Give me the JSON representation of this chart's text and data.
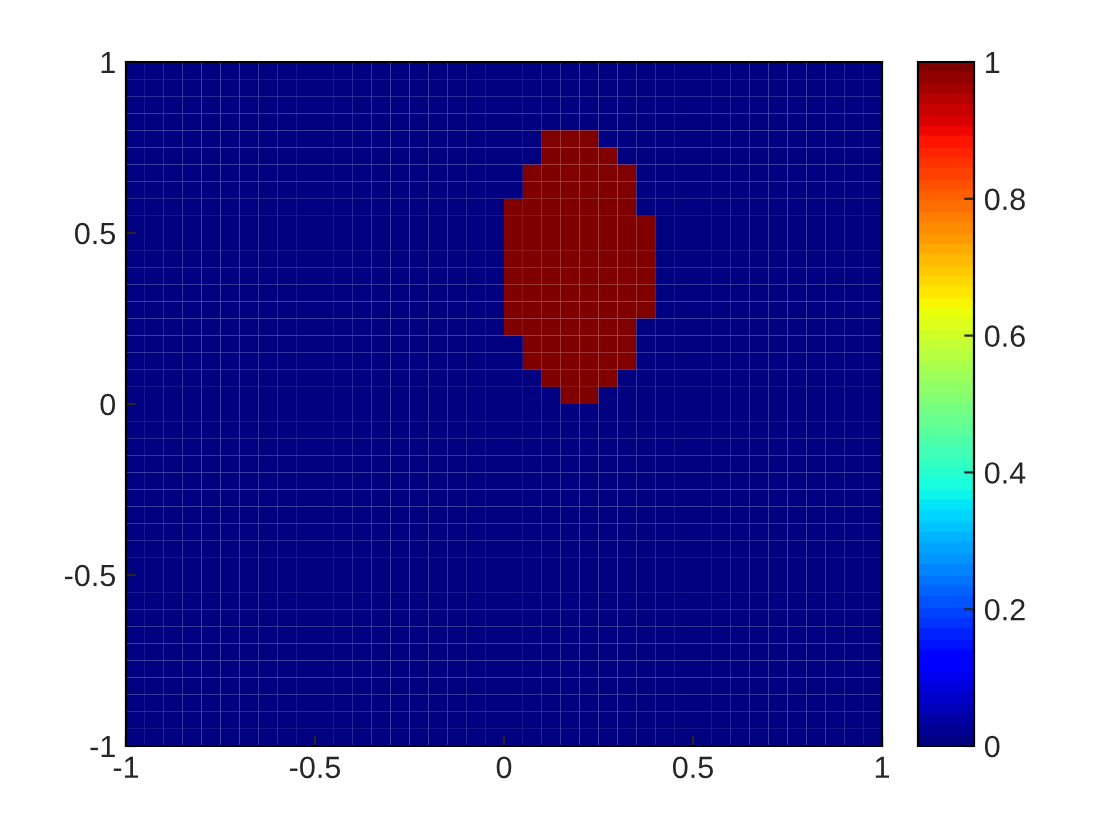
{
  "chart_data": {
    "type": "heatmap",
    "x": [
      -0.975,
      -0.925,
      -0.875,
      -0.825,
      -0.775,
      -0.725,
      -0.675,
      -0.625,
      -0.575,
      -0.525,
      -0.475,
      -0.425,
      -0.375,
      -0.325,
      -0.275,
      -0.225,
      -0.175,
      -0.125,
      -0.075,
      -0.025,
      0.025,
      0.075,
      0.125,
      0.175,
      0.225,
      0.275,
      0.325,
      0.375,
      0.425,
      0.475,
      0.525,
      0.575,
      0.625,
      0.675,
      0.725,
      0.775,
      0.825,
      0.875,
      0.925,
      0.975
    ],
    "y": [
      0.975,
      0.925,
      0.875,
      0.825,
      0.775,
      0.725,
      0.675,
      0.625,
      0.575,
      0.525,
      0.475,
      0.425,
      0.375,
      0.325,
      0.275,
      0.225,
      0.175,
      0.125,
      0.075,
      0.025,
      -0.025,
      -0.075,
      -0.125,
      -0.175,
      -0.225,
      -0.275,
      -0.325,
      -0.375,
      -0.425,
      -0.475,
      -0.525,
      -0.575,
      -0.625,
      -0.675,
      -0.725,
      -0.775,
      -0.825,
      -0.875,
      -0.925,
      -0.975
    ],
    "cells": [
      [
        0,
        0,
        0,
        0,
        0,
        0,
        0,
        0,
        0,
        0,
        0,
        0,
        0,
        0,
        0,
        0,
        0,
        0,
        0,
        0,
        0,
        0,
        0,
        0,
        0,
        0,
        0,
        0,
        0,
        0,
        0,
        0,
        0,
        0,
        0,
        0,
        0,
        0,
        0,
        0
      ],
      [
        0,
        0,
        0,
        0,
        0,
        0,
        0,
        0,
        0,
        0,
        0,
        0,
        0,
        0,
        0,
        0,
        0,
        0,
        0,
        0,
        0,
        0,
        0,
        0,
        0,
        0,
        0,
        0,
        0,
        0,
        0,
        0,
        0,
        0,
        0,
        0,
        0,
        0,
        0,
        0
      ],
      [
        0,
        0,
        0,
        0,
        0,
        0,
        0,
        0,
        0,
        0,
        0,
        0,
        0,
        0,
        0,
        0,
        0,
        0,
        0,
        0,
        0,
        0,
        0,
        0,
        0,
        0,
        0,
        0,
        0,
        0,
        0,
        0,
        0,
        0,
        0,
        0,
        0,
        0,
        0,
        0
      ],
      [
        0,
        0,
        0,
        0,
        0,
        0,
        0,
        0,
        0,
        0,
        0,
        0,
        0,
        0,
        0,
        0,
        0,
        0,
        0,
        0,
        0,
        0,
        0,
        0,
        0,
        0,
        0,
        0,
        0,
        0,
        0,
        0,
        0,
        0,
        0,
        0,
        0,
        0,
        0,
        0
      ],
      [
        0,
        0,
        0,
        0,
        0,
        0,
        0,
        0,
        0,
        0,
        0,
        0,
        0,
        0,
        0,
        0,
        0,
        0,
        0,
        0,
        0,
        0,
        1,
        1,
        1,
        0,
        0,
        0,
        0,
        0,
        0,
        0,
        0,
        0,
        0,
        0,
        0,
        0,
        0,
        0
      ],
      [
        0,
        0,
        0,
        0,
        0,
        0,
        0,
        0,
        0,
        0,
        0,
        0,
        0,
        0,
        0,
        0,
        0,
        0,
        0,
        0,
        0,
        0,
        1,
        1,
        1,
        1,
        0,
        0,
        0,
        0,
        0,
        0,
        0,
        0,
        0,
        0,
        0,
        0,
        0,
        0
      ],
      [
        0,
        0,
        0,
        0,
        0,
        0,
        0,
        0,
        0,
        0,
        0,
        0,
        0,
        0,
        0,
        0,
        0,
        0,
        0,
        0,
        0,
        1,
        1,
        1,
        1,
        1,
        1,
        0,
        0,
        0,
        0,
        0,
        0,
        0,
        0,
        0,
        0,
        0,
        0,
        0
      ],
      [
        0,
        0,
        0,
        0,
        0,
        0,
        0,
        0,
        0,
        0,
        0,
        0,
        0,
        0,
        0,
        0,
        0,
        0,
        0,
        0,
        0,
        1,
        1,
        1,
        1,
        1,
        1,
        0,
        0,
        0,
        0,
        0,
        0,
        0,
        0,
        0,
        0,
        0,
        0,
        0
      ],
      [
        0,
        0,
        0,
        0,
        0,
        0,
        0,
        0,
        0,
        0,
        0,
        0,
        0,
        0,
        0,
        0,
        0,
        0,
        0,
        0,
        1,
        1,
        1,
        1,
        1,
        1,
        1,
        0,
        0,
        0,
        0,
        0,
        0,
        0,
        0,
        0,
        0,
        0,
        0,
        0
      ],
      [
        0,
        0,
        0,
        0,
        0,
        0,
        0,
        0,
        0,
        0,
        0,
        0,
        0,
        0,
        0,
        0,
        0,
        0,
        0,
        0,
        1,
        1,
        1,
        1,
        1,
        1,
        1,
        1,
        0,
        0,
        0,
        0,
        0,
        0,
        0,
        0,
        0,
        0,
        0,
        0
      ],
      [
        0,
        0,
        0,
        0,
        0,
        0,
        0,
        0,
        0,
        0,
        0,
        0,
        0,
        0,
        0,
        0,
        0,
        0,
        0,
        0,
        1,
        1,
        1,
        1,
        1,
        1,
        1,
        1,
        0,
        0,
        0,
        0,
        0,
        0,
        0,
        0,
        0,
        0,
        0,
        0
      ],
      [
        0,
        0,
        0,
        0,
        0,
        0,
        0,
        0,
        0,
        0,
        0,
        0,
        0,
        0,
        0,
        0,
        0,
        0,
        0,
        0,
        1,
        1,
        1,
        1,
        1,
        1,
        1,
        1,
        0,
        0,
        0,
        0,
        0,
        0,
        0,
        0,
        0,
        0,
        0,
        0
      ],
      [
        0,
        0,
        0,
        0,
        0,
        0,
        0,
        0,
        0,
        0,
        0,
        0,
        0,
        0,
        0,
        0,
        0,
        0,
        0,
        0,
        1,
        1,
        1,
        1,
        1,
        1,
        1,
        1,
        0,
        0,
        0,
        0,
        0,
        0,
        0,
        0,
        0,
        0,
        0,
        0
      ],
      [
        0,
        0,
        0,
        0,
        0,
        0,
        0,
        0,
        0,
        0,
        0,
        0,
        0,
        0,
        0,
        0,
        0,
        0,
        0,
        0,
        1,
        1,
        1,
        1,
        1,
        1,
        1,
        1,
        0,
        0,
        0,
        0,
        0,
        0,
        0,
        0,
        0,
        0,
        0,
        0
      ],
      [
        0,
        0,
        0,
        0,
        0,
        0,
        0,
        0,
        0,
        0,
        0,
        0,
        0,
        0,
        0,
        0,
        0,
        0,
        0,
        0,
        1,
        1,
        1,
        1,
        1,
        1,
        1,
        1,
        0,
        0,
        0,
        0,
        0,
        0,
        0,
        0,
        0,
        0,
        0,
        0
      ],
      [
        0,
        0,
        0,
        0,
        0,
        0,
        0,
        0,
        0,
        0,
        0,
        0,
        0,
        0,
        0,
        0,
        0,
        0,
        0,
        0,
        1,
        1,
        1,
        1,
        1,
        1,
        1,
        0,
        0,
        0,
        0,
        0,
        0,
        0,
        0,
        0,
        0,
        0,
        0,
        0
      ],
      [
        0,
        0,
        0,
        0,
        0,
        0,
        0,
        0,
        0,
        0,
        0,
        0,
        0,
        0,
        0,
        0,
        0,
        0,
        0,
        0,
        0,
        1,
        1,
        1,
        1,
        1,
        1,
        0,
        0,
        0,
        0,
        0,
        0,
        0,
        0,
        0,
        0,
        0,
        0,
        0
      ],
      [
        0,
        0,
        0,
        0,
        0,
        0,
        0,
        0,
        0,
        0,
        0,
        0,
        0,
        0,
        0,
        0,
        0,
        0,
        0,
        0,
        0,
        1,
        1,
        1,
        1,
        1,
        1,
        0,
        0,
        0,
        0,
        0,
        0,
        0,
        0,
        0,
        0,
        0,
        0,
        0
      ],
      [
        0,
        0,
        0,
        0,
        0,
        0,
        0,
        0,
        0,
        0,
        0,
        0,
        0,
        0,
        0,
        0,
        0,
        0,
        0,
        0,
        0,
        0,
        1,
        1,
        1,
        1,
        0,
        0,
        0,
        0,
        0,
        0,
        0,
        0,
        0,
        0,
        0,
        0,
        0,
        0
      ],
      [
        0,
        0,
        0,
        0,
        0,
        0,
        0,
        0,
        0,
        0,
        0,
        0,
        0,
        0,
        0,
        0,
        0,
        0,
        0,
        0,
        0,
        0,
        0,
        1,
        1,
        0,
        0,
        0,
        0,
        0,
        0,
        0,
        0,
        0,
        0,
        0,
        0,
        0,
        0,
        0
      ],
      [
        0,
        0,
        0,
        0,
        0,
        0,
        0,
        0,
        0,
        0,
        0,
        0,
        0,
        0,
        0,
        0,
        0,
        0,
        0,
        0,
        0,
        0,
        0,
        0,
        0,
        0,
        0,
        0,
        0,
        0,
        0,
        0,
        0,
        0,
        0,
        0,
        0,
        0,
        0,
        0
      ],
      [
        0,
        0,
        0,
        0,
        0,
        0,
        0,
        0,
        0,
        0,
        0,
        0,
        0,
        0,
        0,
        0,
        0,
        0,
        0,
        0,
        0,
        0,
        0,
        0,
        0,
        0,
        0,
        0,
        0,
        0,
        0,
        0,
        0,
        0,
        0,
        0,
        0,
        0,
        0,
        0
      ],
      [
        0,
        0,
        0,
        0,
        0,
        0,
        0,
        0,
        0,
        0,
        0,
        0,
        0,
        0,
        0,
        0,
        0,
        0,
        0,
        0,
        0,
        0,
        0,
        0,
        0,
        0,
        0,
        0,
        0,
        0,
        0,
        0,
        0,
        0,
        0,
        0,
        0,
        0,
        0,
        0
      ],
      [
        0,
        0,
        0,
        0,
        0,
        0,
        0,
        0,
        0,
        0,
        0,
        0,
        0,
        0,
        0,
        0,
        0,
        0,
        0,
        0,
        0,
        0,
        0,
        0,
        0,
        0,
        0,
        0,
        0,
        0,
        0,
        0,
        0,
        0,
        0,
        0,
        0,
        0,
        0,
        0
      ],
      [
        0,
        0,
        0,
        0,
        0,
        0,
        0,
        0,
        0,
        0,
        0,
        0,
        0,
        0,
        0,
        0,
        0,
        0,
        0,
        0,
        0,
        0,
        0,
        0,
        0,
        0,
        0,
        0,
        0,
        0,
        0,
        0,
        0,
        0,
        0,
        0,
        0,
        0,
        0,
        0
      ],
      [
        0,
        0,
        0,
        0,
        0,
        0,
        0,
        0,
        0,
        0,
        0,
        0,
        0,
        0,
        0,
        0,
        0,
        0,
        0,
        0,
        0,
        0,
        0,
        0,
        0,
        0,
        0,
        0,
        0,
        0,
        0,
        0,
        0,
        0,
        0,
        0,
        0,
        0,
        0,
        0
      ],
      [
        0,
        0,
        0,
        0,
        0,
        0,
        0,
        0,
        0,
        0,
        0,
        0,
        0,
        0,
        0,
        0,
        0,
        0,
        0,
        0,
        0,
        0,
        0,
        0,
        0,
        0,
        0,
        0,
        0,
        0,
        0,
        0,
        0,
        0,
        0,
        0,
        0,
        0,
        0,
        0
      ],
      [
        0,
        0,
        0,
        0,
        0,
        0,
        0,
        0,
        0,
        0,
        0,
        0,
        0,
        0,
        0,
        0,
        0,
        0,
        0,
        0,
        0,
        0,
        0,
        0,
        0,
        0,
        0,
        0,
        0,
        0,
        0,
        0,
        0,
        0,
        0,
        0,
        0,
        0,
        0,
        0
      ],
      [
        0,
        0,
        0,
        0,
        0,
        0,
        0,
        0,
        0,
        0,
        0,
        0,
        0,
        0,
        0,
        0,
        0,
        0,
        0,
        0,
        0,
        0,
        0,
        0,
        0,
        0,
        0,
        0,
        0,
        0,
        0,
        0,
        0,
        0,
        0,
        0,
        0,
        0,
        0,
        0
      ],
      [
        0,
        0,
        0,
        0,
        0,
        0,
        0,
        0,
        0,
        0,
        0,
        0,
        0,
        0,
        0,
        0,
        0,
        0,
        0,
        0,
        0,
        0,
        0,
        0,
        0,
        0,
        0,
        0,
        0,
        0,
        0,
        0,
        0,
        0,
        0,
        0,
        0,
        0,
        0,
        0
      ],
      [
        0,
        0,
        0,
        0,
        0,
        0,
        0,
        0,
        0,
        0,
        0,
        0,
        0,
        0,
        0,
        0,
        0,
        0,
        0,
        0,
        0,
        0,
        0,
        0,
        0,
        0,
        0,
        0,
        0,
        0,
        0,
        0,
        0,
        0,
        0,
        0,
        0,
        0,
        0,
        0
      ],
      [
        0,
        0,
        0,
        0,
        0,
        0,
        0,
        0,
        0,
        0,
        0,
        0,
        0,
        0,
        0,
        0,
        0,
        0,
        0,
        0,
        0,
        0,
        0,
        0,
        0,
        0,
        0,
        0,
        0,
        0,
        0,
        0,
        0,
        0,
        0,
        0,
        0,
        0,
        0,
        0
      ],
      [
        0,
        0,
        0,
        0,
        0,
        0,
        0,
        0,
        0,
        0,
        0,
        0,
        0,
        0,
        0,
        0,
        0,
        0,
        0,
        0,
        0,
        0,
        0,
        0,
        0,
        0,
        0,
        0,
        0,
        0,
        0,
        0,
        0,
        0,
        0,
        0,
        0,
        0,
        0,
        0
      ],
      [
        0,
        0,
        0,
        0,
        0,
        0,
        0,
        0,
        0,
        0,
        0,
        0,
        0,
        0,
        0,
        0,
        0,
        0,
        0,
        0,
        0,
        0,
        0,
        0,
        0,
        0,
        0,
        0,
        0,
        0,
        0,
        0,
        0,
        0,
        0,
        0,
        0,
        0,
        0,
        0
      ],
      [
        0,
        0,
        0,
        0,
        0,
        0,
        0,
        0,
        0,
        0,
        0,
        0,
        0,
        0,
        0,
        0,
        0,
        0,
        0,
        0,
        0,
        0,
        0,
        0,
        0,
        0,
        0,
        0,
        0,
        0,
        0,
        0,
        0,
        0,
        0,
        0,
        0,
        0,
        0,
        0
      ],
      [
        0,
        0,
        0,
        0,
        0,
        0,
        0,
        0,
        0,
        0,
        0,
        0,
        0,
        0,
        0,
        0,
        0,
        0,
        0,
        0,
        0,
        0,
        0,
        0,
        0,
        0,
        0,
        0,
        0,
        0,
        0,
        0,
        0,
        0,
        0,
        0,
        0,
        0,
        0,
        0
      ],
      [
        0,
        0,
        0,
        0,
        0,
        0,
        0,
        0,
        0,
        0,
        0,
        0,
        0,
        0,
        0,
        0,
        0,
        0,
        0,
        0,
        0,
        0,
        0,
        0,
        0,
        0,
        0,
        0,
        0,
        0,
        0,
        0,
        0,
        0,
        0,
        0,
        0,
        0,
        0,
        0
      ],
      [
        0,
        0,
        0,
        0,
        0,
        0,
        0,
        0,
        0,
        0,
        0,
        0,
        0,
        0,
        0,
        0,
        0,
        0,
        0,
        0,
        0,
        0,
        0,
        0,
        0,
        0,
        0,
        0,
        0,
        0,
        0,
        0,
        0,
        0,
        0,
        0,
        0,
        0,
        0,
        0
      ],
      [
        0,
        0,
        0,
        0,
        0,
        0,
        0,
        0,
        0,
        0,
        0,
        0,
        0,
        0,
        0,
        0,
        0,
        0,
        0,
        0,
        0,
        0,
        0,
        0,
        0,
        0,
        0,
        0,
        0,
        0,
        0,
        0,
        0,
        0,
        0,
        0,
        0,
        0,
        0,
        0
      ],
      [
        0,
        0,
        0,
        0,
        0,
        0,
        0,
        0,
        0,
        0,
        0,
        0,
        0,
        0,
        0,
        0,
        0,
        0,
        0,
        0,
        0,
        0,
        0,
        0,
        0,
        0,
        0,
        0,
        0,
        0,
        0,
        0,
        0,
        0,
        0,
        0,
        0,
        0,
        0,
        0
      ]
    ],
    "xlim": [
      -1,
      1
    ],
    "ylim": [
      -1,
      1
    ],
    "xticks": [
      -1,
      -0.5,
      0,
      0.5,
      1
    ],
    "yticks": [
      -1,
      -0.5,
      0,
      0.5,
      1
    ],
    "clim": [
      0,
      1
    ],
    "cticks": [
      0,
      0.2,
      0.4,
      0.6,
      0.8,
      1
    ],
    "grid": false
  }
}
